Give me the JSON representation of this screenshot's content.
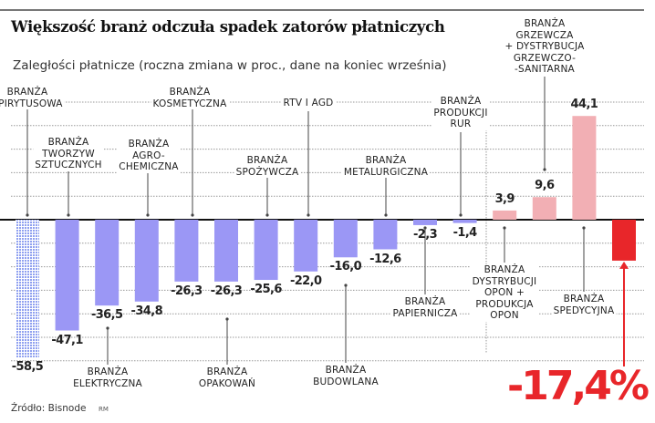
{
  "title": "Większość branż odczuła spadek zatorów płatniczych",
  "subtitle": "Zaległości płatnicze (roczna zmiana w proc., dane na koniec września)",
  "source": "Źródło: Bisnode",
  "author_mark": "RM",
  "highlight": "-17,4%",
  "colors": {
    "negative": "#9b97f5",
    "positive": "#f2afb4",
    "total": "#e8262a",
    "first_pattern": "#8fa0f0"
  },
  "chart_data": {
    "type": "bar",
    "title": "Większość branż odczuła spadek zatorów płatniczych",
    "ylim": [
      -60,
      50
    ],
    "grid": true,
    "categories": [
      "BRANŻA\nSPIRYTUSOWA",
      "BRANŻA\nTWORZYW\nSZTUCZNYCH",
      "BRANŻA\nELEKTRYCZNA",
      "BRANŻA\nAGRO-\nCHEMICZNA",
      "BRANŻA\nKOSMETYCZNA",
      "BRANŻA\nOPAKOWAŃ",
      "BRANŻA\nSPOŻYWCZA",
      "RTV I AGD",
      "BRANŻA\nBUDOWLANA",
      "BRANŻA\nMETALURGICZNA",
      "BRANŻA\nPAPIERNICZA",
      "BRANŻA\nPRODUKCJI\nRUR",
      "BRANŻA\nDYSTRYBUCJI\nOPON +\nPRODUKCJA\nOPON",
      "BRANŻA\nGRZEWCZA\n+ DYSTRYBUCJA\nGRZEWCZO-\n-SANITARNA",
      "BRANŻA\nSPEDYCYJNA",
      ""
    ],
    "values": [
      -58.5,
      -47.1,
      -36.5,
      -34.8,
      -26.3,
      -26.3,
      -25.6,
      -22.0,
      -16.0,
      -12.6,
      -2.3,
      -1.4,
      3.9,
      9.6,
      44.1,
      -17.4
    ],
    "value_labels": [
      "-58,5",
      "-47,1",
      "-36,5",
      "-34,8",
      "-26,3",
      "-26,3",
      "-25,6",
      "-22,0",
      "-16,0",
      "-12,6",
      "-2,3",
      "-1,4",
      "3,9",
      "9,6",
      "44,1",
      ""
    ]
  }
}
